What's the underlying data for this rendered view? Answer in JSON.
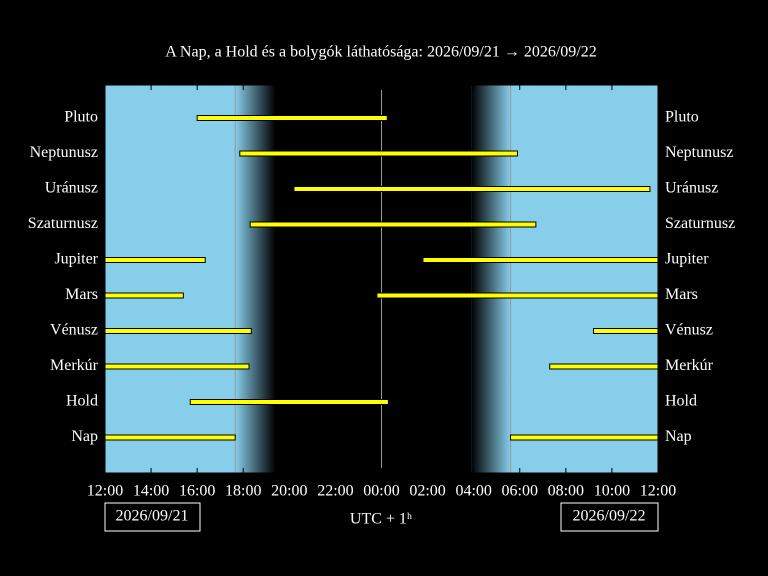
{
  "chart_data": {
    "type": "timeline",
    "title": "A Nap, a Hold és a bolygók láthatósága: 2026/09/21 → 2026/09/22",
    "categories": [
      "Pluto",
      "Neptunusz",
      "Uránusz",
      "Szaturnusz",
      "Jupiter",
      "Mars",
      "Vénusz",
      "Merkúr",
      "Hold",
      "Nap"
    ],
    "intervals": [
      [
        [
          16,
          24.25
        ]
      ],
      [
        [
          17.85,
          29.9
        ]
      ],
      [
        [
          20.2,
          35.65
        ]
      ],
      [
        [
          18.3,
          30.7
        ]
      ],
      [
        [
          12,
          16.35
        ],
        [
          25.8,
          36
        ]
      ],
      [
        [
          12,
          15.4
        ],
        [
          23.8,
          36
        ]
      ],
      [
        [
          12,
          18.35
        ],
        [
          33.2,
          36
        ]
      ],
      [
        [
          12,
          18.25
        ],
        [
          31.3,
          36
        ]
      ],
      [
        [
          15.7,
          24.3
        ]
      ],
      [
        [
          12,
          17.65
        ],
        [
          29.6,
          36
        ]
      ]
    ],
    "color": "#ffff00",
    "twilight": [
      [
        17.65,
        19.4
      ],
      [
        27.9,
        29.6
      ]
    ],
    "vlines": [
      17.65,
      24,
      29.6
    ],
    "xlim": [
      12,
      36
    ],
    "xticks": [
      {
        "value": 12,
        "label": "12:00"
      },
      {
        "value": 14,
        "label": "14:00"
      },
      {
        "value": 16,
        "label": "16:00"
      },
      {
        "value": 18,
        "label": "18:00"
      },
      {
        "value": 20,
        "label": "20:00"
      },
      {
        "value": 22,
        "label": "22:00"
      },
      {
        "value": 24,
        "label": "00:00"
      },
      {
        "value": 26,
        "label": "02:00"
      },
      {
        "value": 28,
        "label": "04:00"
      },
      {
        "value": 30,
        "label": "06:00"
      },
      {
        "value": 32,
        "label": "08:00"
      },
      {
        "value": 34,
        "label": "10:00"
      },
      {
        "value": 36,
        "label": "12:00"
      }
    ],
    "start_date": "2026/09/21",
    "end_date": "2026/09/22",
    "xlabel": "UTC + 1ʰ"
  }
}
